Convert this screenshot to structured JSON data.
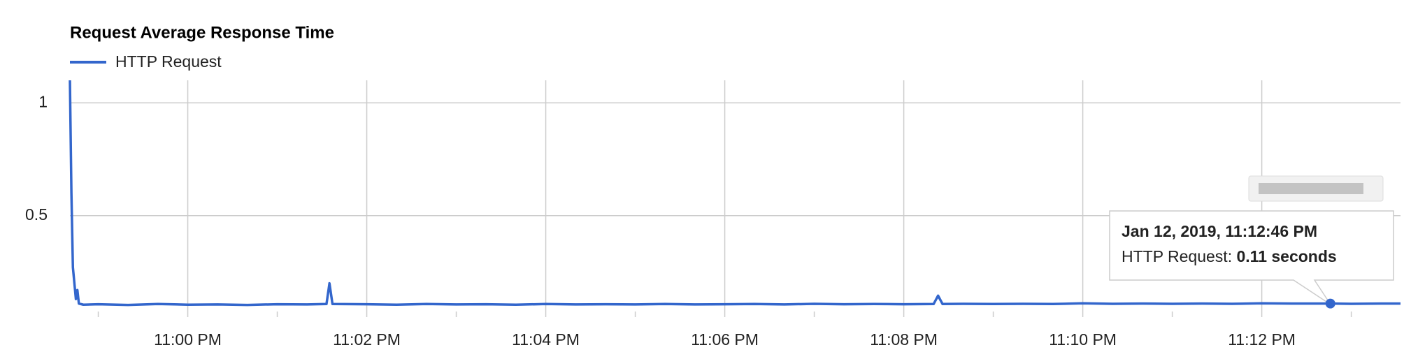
{
  "chart_data": {
    "type": "line",
    "title": "Request Average Response Time",
    "x": [
      "22:58:41",
      "22:58:42",
      "22:58:43",
      "22:58:45",
      "22:58:46",
      "22:58:47",
      "22:58:50",
      "22:59:00",
      "22:59:20",
      "22:59:40",
      "23:00:00",
      "23:00:20",
      "23:00:40",
      "23:01:00",
      "23:01:20",
      "23:01:33",
      "23:01:35",
      "23:01:37",
      "23:02:00",
      "23:02:20",
      "23:02:40",
      "23:03:00",
      "23:03:20",
      "23:03:40",
      "23:04:00",
      "23:04:20",
      "23:04:40",
      "23:05:00",
      "23:05:20",
      "23:05:40",
      "23:06:00",
      "23:06:20",
      "23:06:40",
      "23:07:00",
      "23:07:20",
      "23:07:40",
      "23:08:00",
      "23:08:20",
      "23:08:23",
      "23:08:26",
      "23:08:40",
      "23:09:00",
      "23:09:20",
      "23:09:40",
      "23:10:00",
      "23:10:20",
      "23:10:40",
      "23:11:00",
      "23:11:20",
      "23:11:40",
      "23:12:00",
      "23:12:20",
      "23:12:46",
      "23:13:00",
      "23:13:20",
      "23:13:33"
    ],
    "series": [
      {
        "name": "HTTP Request",
        "color": "#3366cc",
        "values": [
          1.1,
          0.6,
          0.27,
          0.13,
          0.17,
          0.11,
          0.105,
          0.107,
          0.104,
          0.108,
          0.105,
          0.106,
          0.104,
          0.107,
          0.106,
          0.108,
          0.2,
          0.108,
          0.107,
          0.105,
          0.108,
          0.106,
          0.107,
          0.105,
          0.108,
          0.106,
          0.107,
          0.106,
          0.108,
          0.106,
          0.107,
          0.108,
          0.106,
          0.109,
          0.107,
          0.108,
          0.107,
          0.108,
          0.145,
          0.108,
          0.109,
          0.108,
          0.109,
          0.108,
          0.111,
          0.109,
          0.11,
          0.109,
          0.11,
          0.109,
          0.111,
          0.11,
          0.11,
          0.109,
          0.11,
          0.11
        ]
      }
    ],
    "xlim": [
      "22:58:41",
      "23:13:33"
    ],
    "xticks": [
      {
        "value": "23:00",
        "label": "11:00 PM"
      },
      {
        "value": "23:02",
        "label": "11:02 PM"
      },
      {
        "value": "23:04",
        "label": "11:04 PM"
      },
      {
        "value": "23:06",
        "label": "11:06 PM"
      },
      {
        "value": "23:08",
        "label": "11:08 PM"
      },
      {
        "value": "23:10",
        "label": "11:10 PM"
      },
      {
        "value": "23:12",
        "label": "11:12 PM"
      }
    ],
    "xminorticks": [
      "22:59",
      "23:01",
      "23:03",
      "23:05",
      "23:07",
      "23:09",
      "23:11",
      "23:13"
    ],
    "ylim": [
      0.05,
      1.1
    ],
    "yticks": [
      0.5,
      1
    ],
    "grid": true,
    "tooltip": {
      "index": 52,
      "title": "Jan 12, 2019, 11:12:46 PM",
      "label": "HTTP Request:",
      "value_label": "0.11 seconds"
    }
  }
}
